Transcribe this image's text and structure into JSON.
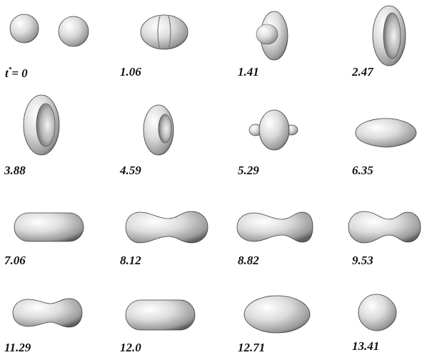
{
  "figure": {
    "shading": {
      "light": "#ffffff",
      "mid": "#cfcfcf",
      "dark": "#5a5a5a",
      "outline": "#3c3c3c"
    },
    "time_symbol": "t",
    "time_superscript": "*",
    "time_equals": "= ",
    "frames": [
      {
        "label": "0",
        "shape": "two-separated-spheres"
      },
      {
        "label": "1.06",
        "shape": "merged-spheres-with-ridge"
      },
      {
        "label": "1.41",
        "shape": "disk-with-central-bulge"
      },
      {
        "label": "2.47",
        "shape": "thin-torus"
      },
      {
        "label": "3.88",
        "shape": "torus"
      },
      {
        "label": "4.59",
        "shape": "thick-torus"
      },
      {
        "label": "5.29",
        "shape": "lobed-blob"
      },
      {
        "label": "6.35",
        "shape": "elongated-ellipsoid"
      },
      {
        "label": "7.06",
        "shape": "capsule"
      },
      {
        "label": "8.12",
        "shape": "dumbbell"
      },
      {
        "label": "8.82",
        "shape": "dumbbell"
      },
      {
        "label": "9.53",
        "shape": "dumbbell-necked"
      },
      {
        "label": "11.29",
        "shape": "dumbbell"
      },
      {
        "label": "12.0",
        "shape": "capsule"
      },
      {
        "label": "12.71",
        "shape": "ellipsoid"
      },
      {
        "label": "13.41",
        "shape": "rounded-droplet"
      }
    ]
  }
}
